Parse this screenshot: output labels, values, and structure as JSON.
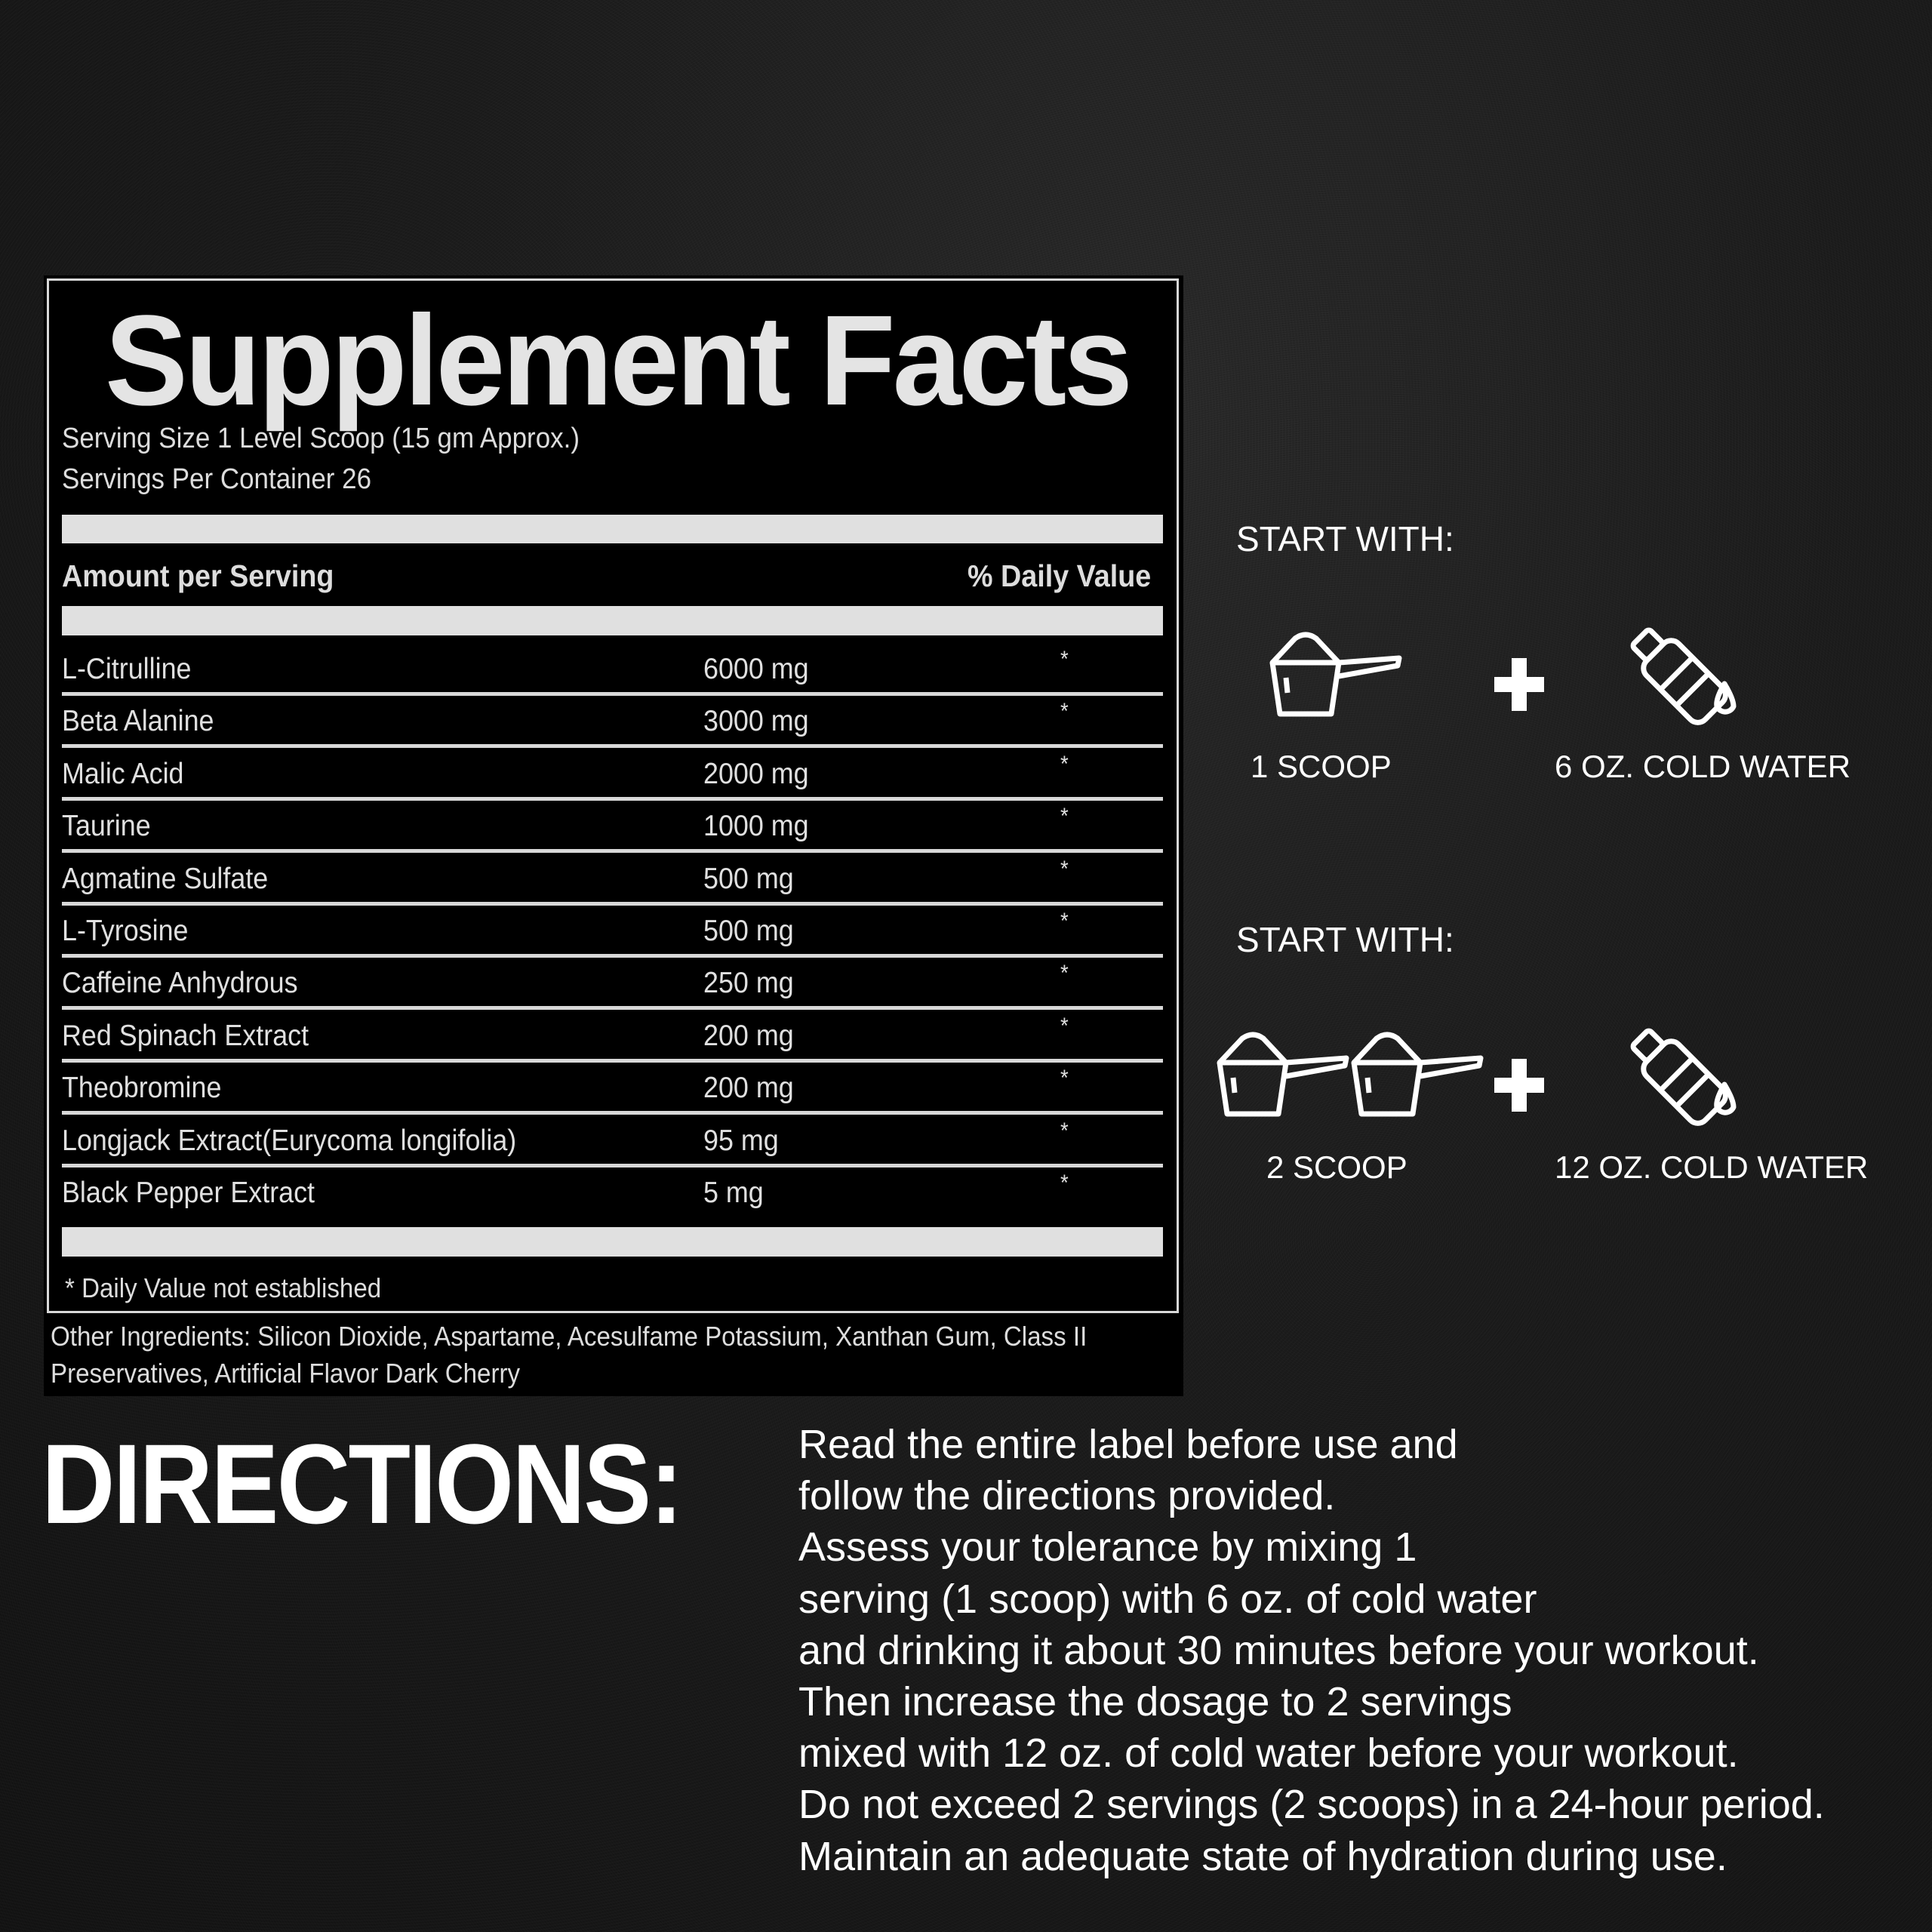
{
  "facts": {
    "title": "Supplement Facts",
    "serving_size": "Serving Size 1 Level Scoop (15 gm Approx.)",
    "servings_per_container": "Servings Per Container 26",
    "amount_header": "Amount per Serving",
    "dv_header": "% Daily Value",
    "rows": [
      {
        "name": "L-Citrulline",
        "amount": "6000 mg",
        "dv": "*"
      },
      {
        "name": "Beta Alanine",
        "amount": "3000 mg",
        "dv": "*"
      },
      {
        "name": "Malic Acid",
        "amount": "2000 mg",
        "dv": "*"
      },
      {
        "name": "Taurine",
        "amount": "1000 mg",
        "dv": "*"
      },
      {
        "name": "Agmatine Sulfate",
        "amount": "500 mg",
        "dv": "*"
      },
      {
        "name": "L-Tyrosine",
        "amount": "500 mg",
        "dv": "*"
      },
      {
        "name": "Caffeine Anhydrous",
        "amount": "250 mg",
        "dv": "*"
      },
      {
        "name": "Red Spinach Extract",
        "amount": "200 mg",
        "dv": "*"
      },
      {
        "name": "Theobromine",
        "amount": "200 mg",
        "dv": "*"
      },
      {
        "name": "Longjack Extract(Eurycoma longifolia)",
        "amount": "95 mg",
        "dv": "*"
      },
      {
        "name": "Black Pepper Extract",
        "amount": "5 mg",
        "dv": "*"
      }
    ],
    "footnote": "* Daily Value not established",
    "other_ingredients_1": "Other Ingredients: Silicon Dioxide, Aspartame, Acesulfame Potassium, Xanthan Gum, Class II",
    "other_ingredients_2": "Preservatives, Artificial Flavor Dark Cherry"
  },
  "steps": [
    {
      "heading": "START WITH:",
      "scoop_label": "1 SCOOP",
      "water_label": "6 OZ. COLD WATER",
      "icons": [
        "scoop-icon",
        "plus-icon",
        "water-bottle-icon"
      ]
    },
    {
      "heading": "START WITH:",
      "scoop_label": "2 SCOOP",
      "water_label": "12 OZ. COLD WATER",
      "icons": [
        "scoop-icon",
        "scoop-icon",
        "plus-icon",
        "water-bottle-icon"
      ]
    }
  ],
  "directions": {
    "title": "DIRECTIONS:",
    "lines": [
      "Read the entire label before use and",
      "follow the directions provided.",
      "Assess your tolerance by mixing 1",
      "serving (1 scoop) with 6 oz. of cold water",
      "and drinking it about 30 minutes before your workout.",
      "Then increase the dosage to 2 servings",
      "mixed with 12 oz. of cold water before your workout.",
      "Do not exceed 2 servings (2 scoops) in a 24-hour period.",
      "Maintain an adequate state of hydration during use."
    ]
  }
}
